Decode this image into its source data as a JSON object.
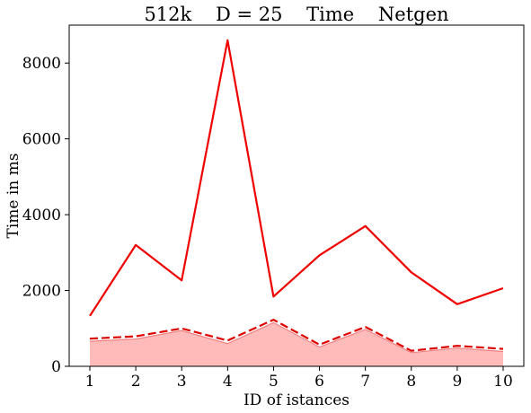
{
  "chart_data": {
    "type": "line",
    "title": "512k    D = 25    Time    Netgen",
    "xlabel": "ID of istances",
    "ylabel": "Time in ms",
    "x": [
      1,
      2,
      3,
      4,
      5,
      6,
      7,
      8,
      9,
      10
    ],
    "xlim": [
      0.55,
      10.45
    ],
    "ylim": [
      0,
      9000
    ],
    "yticks": [
      0,
      2000,
      4000,
      6000,
      8000
    ],
    "grid": false,
    "series": [
      {
        "style": "solid",
        "color": "#ee0000",
        "values": [
          1330,
          3200,
          2270,
          8600,
          1840,
          2930,
          3700,
          2480,
          1640,
          2060
        ]
      },
      {
        "style": "dashed",
        "color": "#dd0000",
        "values": [
          730,
          790,
          1000,
          680,
          1230,
          570,
          1040,
          410,
          540,
          460
        ]
      },
      {
        "style": "filled-area",
        "color": "#ffb3b3",
        "values": [
          660,
          720,
          940,
          600,
          1150,
          510,
          970,
          360,
          480,
          390
        ]
      }
    ]
  }
}
